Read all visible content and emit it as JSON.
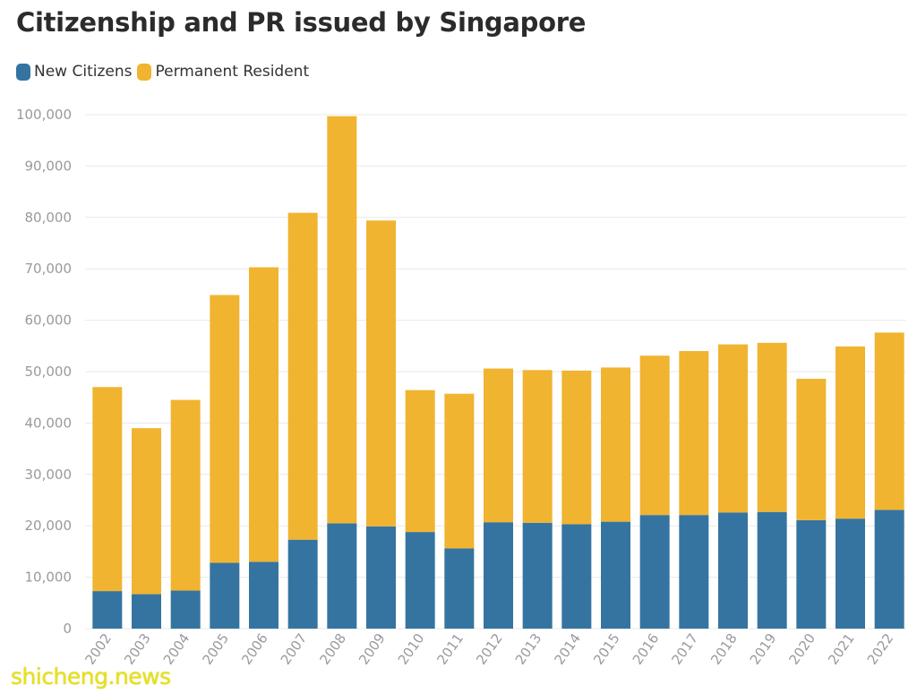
{
  "chart_data": {
    "type": "bar",
    "stacked": true,
    "title": "Citizenship and PR issued by Singapore",
    "categories": [
      "2002",
      "2003",
      "2004",
      "2005",
      "2006",
      "2007",
      "2008",
      "2009",
      "2010",
      "2011",
      "2012",
      "2013",
      "2014",
      "2015",
      "2016",
      "2017",
      "2018",
      "2019",
      "2020",
      "2021",
      "2022"
    ],
    "series": [
      {
        "name": "New Citizens",
        "color": "#3574a0",
        "values": [
          7300,
          6700,
          7400,
          12800,
          13000,
          17300,
          20500,
          19900,
          18800,
          15600,
          20700,
          20600,
          20300,
          20800,
          22100,
          22100,
          22600,
          22700,
          21100,
          21400,
          23100
        ]
      },
      {
        "name": "Permanent Resident",
        "color": "#f0b431",
        "values": [
          39700,
          32300,
          37100,
          52100,
          57300,
          63600,
          79200,
          59500,
          27600,
          30100,
          29900,
          29700,
          29900,
          30000,
          31000,
          31900,
          32700,
          32900,
          27500,
          33500,
          34500
        ]
      }
    ],
    "y_ticks": [
      "0",
      "10,000",
      "20,000",
      "30,000",
      "40,000",
      "50,000",
      "60,000",
      "70,000",
      "80,000",
      "90,000",
      "100,000"
    ],
    "ylim": [
      0,
      100000
    ],
    "grid": true,
    "legend_position": "top-left"
  },
  "watermark": "shicheng.news"
}
